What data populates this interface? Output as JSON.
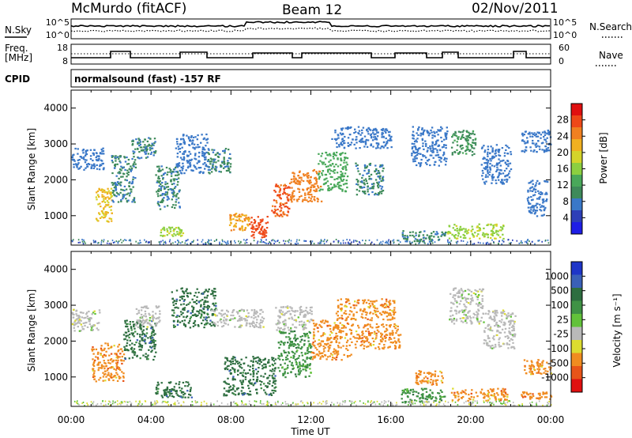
{
  "header": {
    "station": "McMurdo (fitACF)",
    "beam": "Beam 12",
    "date": "02/Nov/2011"
  },
  "panels": {
    "nsky": {
      "left_label": "N.Sky",
      "right_label": "N.Search",
      "left_ticks": [
        "10^5",
        "10^0"
      ],
      "right_ticks": [
        "10^5",
        "10^0"
      ]
    },
    "freq": {
      "left_label_1": "Freq.",
      "left_label_2": "[MHz]",
      "right_label": "Nave",
      "left_ticks": [
        "18",
        "8"
      ],
      "right_ticks": [
        "60",
        "0"
      ]
    },
    "cpid": {
      "label": "CPID",
      "program": "normalsound (fast) -157 RF"
    }
  },
  "colors": {
    "power": [
      "#1e1ee6",
      "#2d3fb8",
      "#3a78c8",
      "#3e8a5a",
      "#49a85a",
      "#8ccf40",
      "#d4d42a",
      "#f0b020",
      "#f08020",
      "#ee4818",
      "#e01010"
    ],
    "velocity": [
      "#1e35c8",
      "#3a60b8",
      "#2e6e40",
      "#3f9245",
      "#62c23a",
      "#b9b9b9",
      "#dcdc30",
      "#f08c20",
      "#e85418",
      "#e01010"
    ]
  },
  "chart_data": [
    {
      "type": "heatmap",
      "name": "power",
      "title": "",
      "xlabel": "",
      "ylabel": "Slant Range [km]",
      "xlim": [
        "00:00",
        "24:00"
      ],
      "ylim": [
        180,
        4500
      ],
      "x_ticks": [
        "00:00",
        "04:00",
        "08:00",
        "12:00",
        "16:00",
        "20:00",
        "00:00"
      ],
      "y_ticks": [
        1000,
        2000,
        3000,
        4000
      ],
      "colorbar": {
        "label": "Power [dB]",
        "ticks": [
          "4",
          "8",
          "12",
          "16",
          "20",
          "24",
          "28"
        ],
        "range": [
          0,
          30
        ]
      },
      "regions": [
        {
          "t0": 0.0,
          "t1": 1.6,
          "r0": 2300,
          "r1": 2900,
          "v": 6
        },
        {
          "t0": 1.2,
          "t1": 2.0,
          "r0": 800,
          "r1": 1800,
          "v": 20
        },
        {
          "t0": 2.0,
          "t1": 3.2,
          "r0": 1400,
          "r1": 2700,
          "v": 8
        },
        {
          "t0": 3.0,
          "t1": 4.2,
          "r0": 2600,
          "r1": 3200,
          "v": 8
        },
        {
          "t0": 4.4,
          "t1": 5.6,
          "r0": 450,
          "r1": 700,
          "v": 16
        },
        {
          "t0": 4.2,
          "t1": 5.4,
          "r0": 1200,
          "r1": 2400,
          "v": 8
        },
        {
          "t0": 5.2,
          "t1": 6.8,
          "r0": 2200,
          "r1": 3300,
          "v": 6
        },
        {
          "t0": 6.8,
          "t1": 8.0,
          "r0": 2200,
          "r1": 2900,
          "v": 8
        },
        {
          "t0": 7.9,
          "t1": 8.9,
          "r0": 600,
          "r1": 1100,
          "v": 22
        },
        {
          "t0": 8.9,
          "t1": 9.8,
          "r0": 400,
          "r1": 1000,
          "v": 27
        },
        {
          "t0": 10.0,
          "t1": 10.9,
          "r0": 1000,
          "r1": 1900,
          "v": 26
        },
        {
          "t0": 10.9,
          "t1": 12.5,
          "r0": 1400,
          "r1": 2300,
          "v": 24
        },
        {
          "t0": 12.3,
          "t1": 13.8,
          "r0": 1700,
          "r1": 2800,
          "v": 12
        },
        {
          "t0": 13.0,
          "t1": 16.0,
          "r0": 2900,
          "r1": 3500,
          "v": 6
        },
        {
          "t0": 14.2,
          "t1": 15.6,
          "r0": 1600,
          "r1": 2500,
          "v": 8
        },
        {
          "t0": 16.5,
          "t1": 18.7,
          "r0": 300,
          "r1": 600,
          "v": 8
        },
        {
          "t0": 17.0,
          "t1": 18.8,
          "r0": 2400,
          "r1": 3500,
          "v": 6
        },
        {
          "t0": 18.8,
          "t1": 21.6,
          "r0": 380,
          "r1": 800,
          "v": 16
        },
        {
          "t0": 19.0,
          "t1": 20.2,
          "r0": 2700,
          "r1": 3400,
          "v": 10
        },
        {
          "t0": 20.5,
          "t1": 22.0,
          "r0": 1900,
          "r1": 3000,
          "v": 6
        },
        {
          "t0": 22.8,
          "t1": 23.8,
          "r0": 1000,
          "r1": 2000,
          "v": 6
        },
        {
          "t0": 22.5,
          "t1": 24.0,
          "r0": 2800,
          "r1": 3400,
          "v": 6
        }
      ]
    },
    {
      "type": "heatmap",
      "name": "velocity",
      "title": "",
      "xlabel": "Time UT",
      "ylabel": "Slant Range [km]",
      "xlim": [
        "00:00",
        "24:00"
      ],
      "ylim": [
        180,
        4500
      ],
      "x_ticks": [
        "00:00",
        "04:00",
        "08:00",
        "12:00",
        "16:00",
        "20:00",
        "00:00"
      ],
      "y_ticks": [
        1000,
        2000,
        3000,
        4000
      ],
      "colorbar": {
        "label": "Velocity [m s⁻¹]",
        "ticks": [
          "1000",
          "500",
          "100",
          "25",
          "-25",
          "-100",
          "-500",
          "-1000"
        ],
        "range": [
          -1000,
          1000
        ]
      },
      "regions": [
        {
          "t0": 0.0,
          "t1": 1.4,
          "r0": 2300,
          "r1": 2900,
          "v": 0
        },
        {
          "t0": 1.0,
          "t1": 2.6,
          "r0": 900,
          "r1": 2000,
          "v": -300
        },
        {
          "t0": 2.6,
          "t1": 4.2,
          "r0": 1500,
          "r1": 2600,
          "v": 250
        },
        {
          "t0": 3.2,
          "t1": 4.4,
          "r0": 2400,
          "r1": 3000,
          "v": 0
        },
        {
          "t0": 4.2,
          "t1": 6.0,
          "r0": 450,
          "r1": 900,
          "v": 300
        },
        {
          "t0": 5.0,
          "t1": 7.2,
          "r0": 2400,
          "r1": 3500,
          "v": 200
        },
        {
          "t0": 7.0,
          "t1": 9.6,
          "r0": 2400,
          "r1": 2900,
          "v": 0
        },
        {
          "t0": 7.6,
          "t1": 10.2,
          "r0": 500,
          "r1": 1600,
          "v": 300
        },
        {
          "t0": 10.3,
          "t1": 12.0,
          "r0": 1000,
          "r1": 2300,
          "v": 120
        },
        {
          "t0": 10.2,
          "t1": 12.0,
          "r0": 2300,
          "r1": 3000,
          "v": 0
        },
        {
          "t0": 12.0,
          "t1": 14.0,
          "r0": 1500,
          "r1": 2600,
          "v": -300
        },
        {
          "t0": 13.2,
          "t1": 16.2,
          "r0": 2600,
          "r1": 3200,
          "v": -300
        },
        {
          "t0": 14.0,
          "t1": 16.5,
          "r0": 1800,
          "r1": 2500,
          "v": -300
        },
        {
          "t0": 16.5,
          "t1": 18.7,
          "r0": 300,
          "r1": 700,
          "v": 100
        },
        {
          "t0": 17.2,
          "t1": 18.6,
          "r0": 800,
          "r1": 1200,
          "v": -300
        },
        {
          "t0": 19.0,
          "t1": 21.8,
          "r0": 350,
          "r1": 700,
          "v": -300
        },
        {
          "t0": 18.9,
          "t1": 20.6,
          "r0": 2500,
          "r1": 3500,
          "v": 0
        },
        {
          "t0": 20.6,
          "t1": 22.2,
          "r0": 1800,
          "r1": 2900,
          "v": 0
        },
        {
          "t0": 22.6,
          "t1": 24.0,
          "r0": 1100,
          "r1": 1500,
          "v": -300
        },
        {
          "t0": 22.5,
          "t1": 24.0,
          "r0": 400,
          "r1": 600,
          "v": -300
        }
      ]
    }
  ]
}
